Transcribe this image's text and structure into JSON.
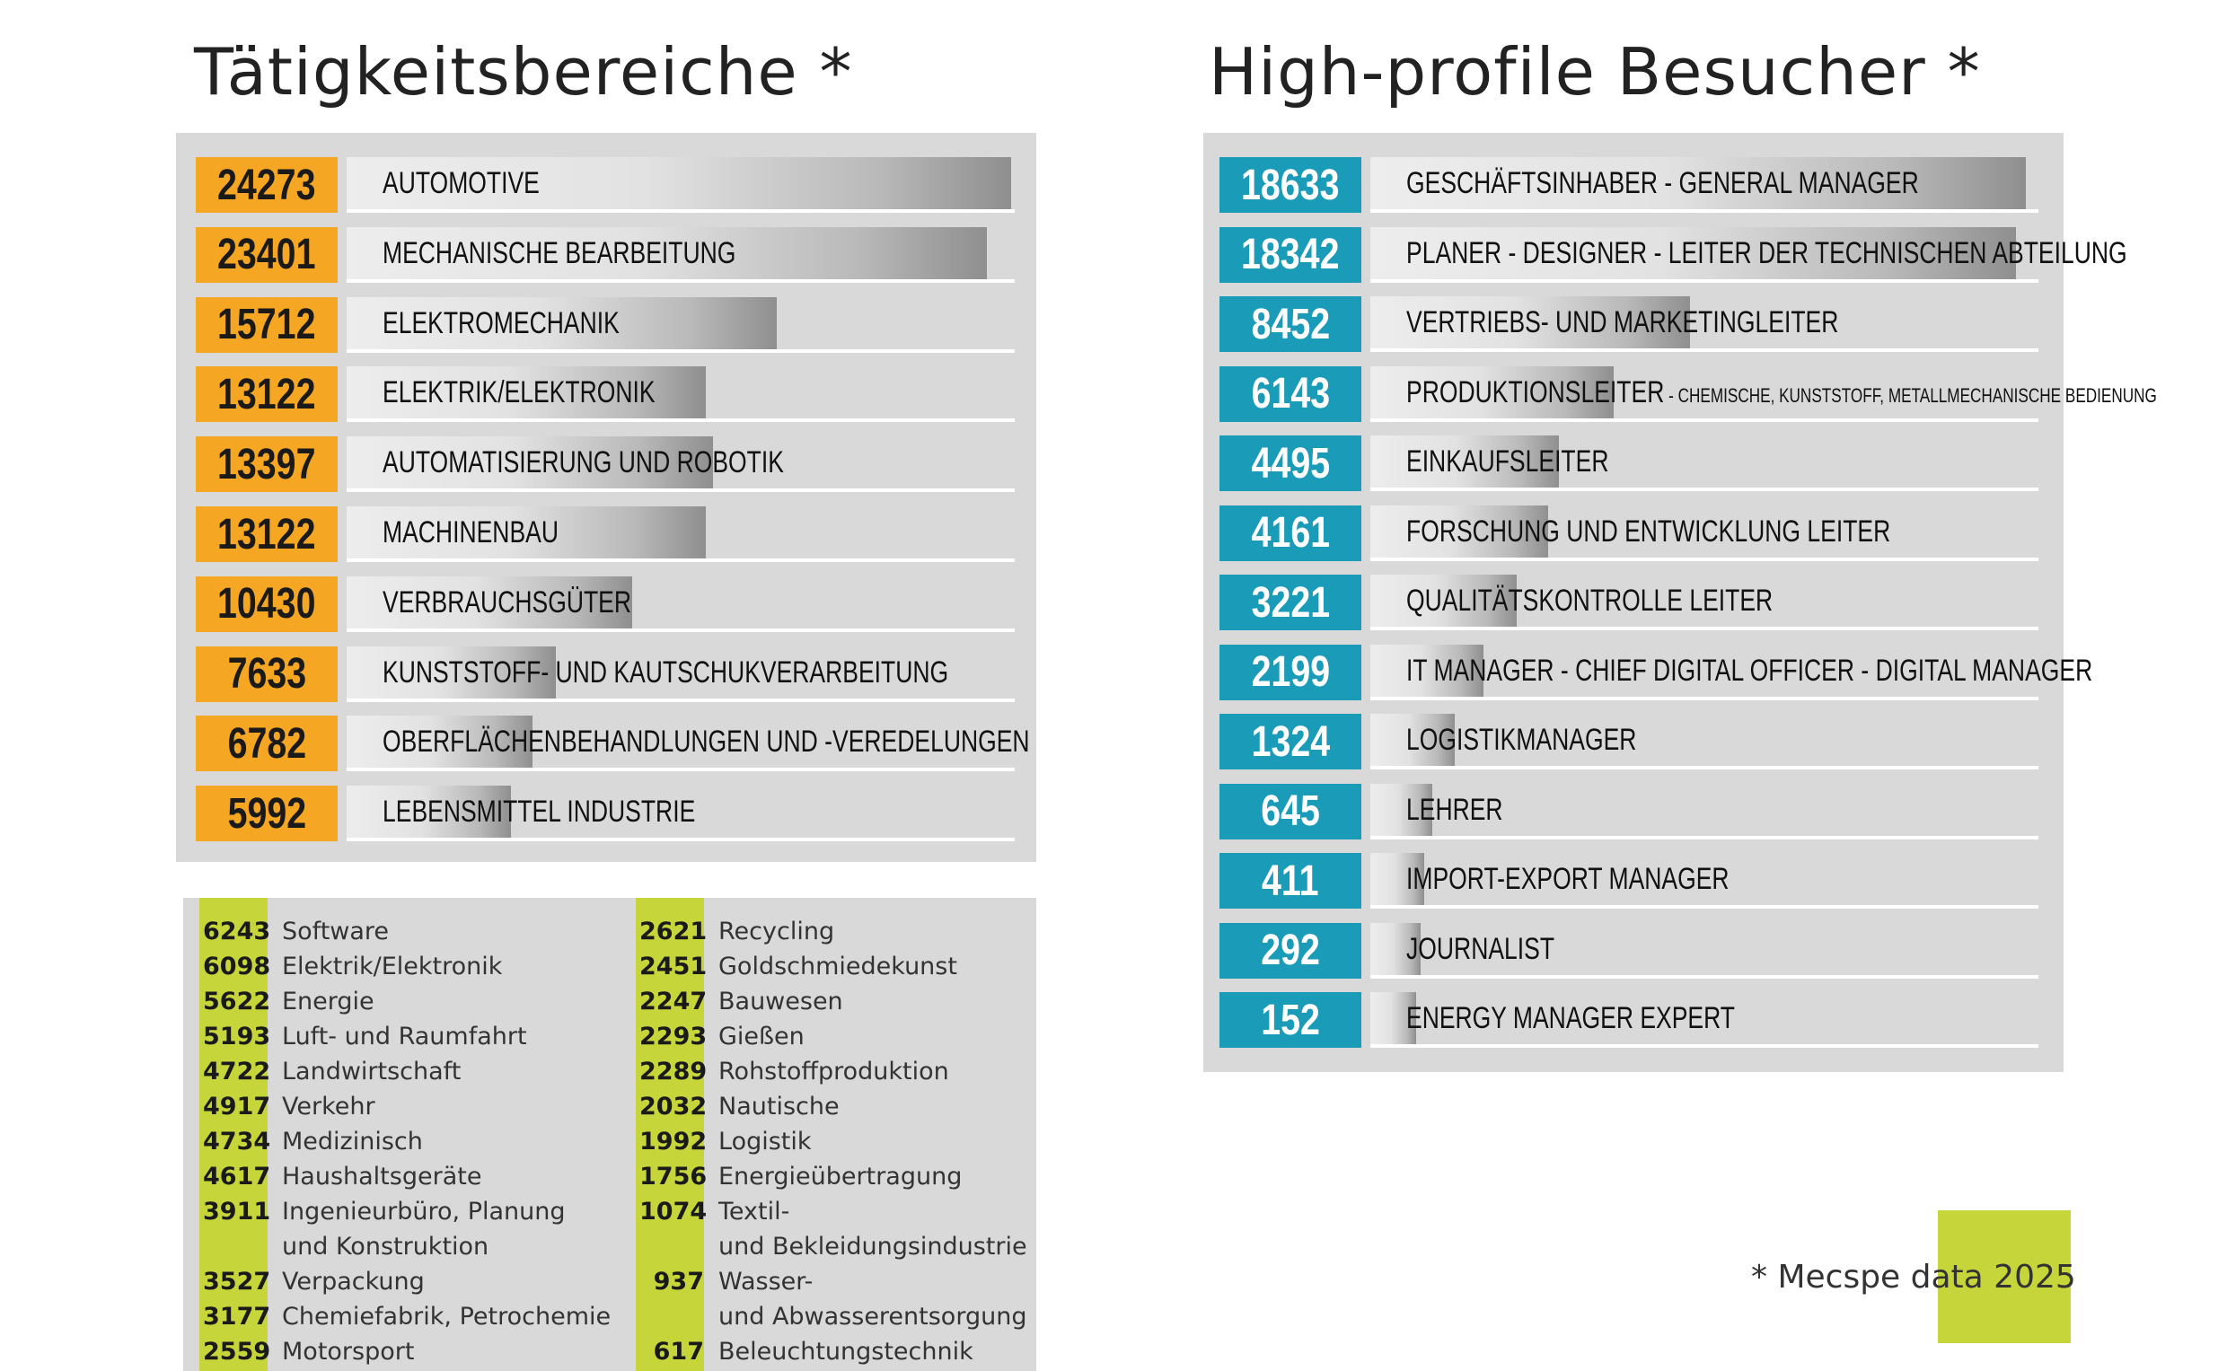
{
  "titles": {
    "left": "Tätigkeitsbereiche *",
    "right": "High-profile Besucher *"
  },
  "colors": {
    "orange": "#f5a623",
    "blue": "#1a9bb8",
    "green": "#c6d63a",
    "panel": "#d9d9d9"
  },
  "footer": {
    "note": "* Mecspe data 2025"
  },
  "chart_data": [
    {
      "type": "bar",
      "title": "Tätigkeitsbereiche *",
      "orientation": "horizontal",
      "categories": [
        "AUTOMOTIVE",
        "MECHANISCHE BEARBEITUNG",
        "ELEKTROMECHANIK",
        "ELEKTRIK/ELEKTRONIK",
        "AUTOMATISIERUNG UND ROBOTIK",
        "MACHINENBAU",
        "VERBRAUCHSGÜTER",
        "KUNSTSTOFF- UND KAUTSCHUKVERARBEITUNG",
        "OBERFLÄCHENBEHANDLUNGEN UND -VEREDELUNGEN",
        "LEBENSMITTEL INDUSTRIE"
      ],
      "values": [
        24273,
        23401,
        15712,
        13122,
        13397,
        13122,
        10430,
        7633,
        6782,
        5992
      ],
      "value_labels": [
        "24273",
        "23401",
        "15712",
        "13122",
        "13397",
        "13122",
        "10430",
        "7633",
        "6782",
        "5992"
      ]
    },
    {
      "type": "bar",
      "title": "High-profile Besucher *",
      "orientation": "horizontal",
      "categories": [
        "GESCHÄFTSINHABER - GENERAL MANAGER",
        "PLANER - DESIGNER - LEITER DER TECHNISCHEN ABTEILUNG",
        "VERTRIEBS- UND MARKETINGLEITER",
        "PRODUKTIONSLEITER",
        "EINKAUFSLEITER",
        "FORSCHUNG UND ENTWICKLUNG LEITER",
        "QUALITÄTSKONTROLLE LEITER",
        "IT MANAGER - CHIEF DIGITAL OFFICER - DIGITAL MANAGER",
        "LOGISTIKMANAGER",
        "LEHRER",
        "IMPORT-EXPORT MANAGER",
        "JOURNALIST",
        "ENERGY MANAGER EXPERT"
      ],
      "subtitles": [
        "",
        "",
        "",
        "- CHEMISCHE, KUNSTSTOFF, METALLMECHANISCHE BEDIENUNG",
        "",
        "",
        "",
        "",
        "",
        "",
        "",
        "",
        ""
      ],
      "values": [
        18633,
        18342,
        8452,
        6143,
        4495,
        4161,
        3221,
        2199,
        1324,
        645,
        411,
        292,
        152
      ],
      "value_labels": [
        "18633",
        "18342",
        "8452",
        "6143",
        "4495",
        "4161",
        "3221",
        "2199",
        "1324",
        "645",
        "411",
        "292",
        "152"
      ]
    },
    {
      "type": "table",
      "columns": [
        [
          {
            "value": "6243",
            "label": [
              "Software"
            ]
          },
          {
            "value": "6098",
            "label": [
              "Elektrik/Elektronik"
            ]
          },
          {
            "value": "5622",
            "label": [
              "Energie"
            ]
          },
          {
            "value": "5193",
            "label": [
              "Luft- und Raumfahrt"
            ]
          },
          {
            "value": "4722",
            "label": [
              "Landwirtschaft"
            ]
          },
          {
            "value": "4917",
            "label": [
              "Verkehr"
            ]
          },
          {
            "value": "4734",
            "label": [
              "Medizinisch"
            ]
          },
          {
            "value": "4617",
            "label": [
              "Haushaltsgeräte"
            ]
          },
          {
            "value": "3911",
            "label": [
              "Ingenieurbüro, Planung",
              "und Konstruktion"
            ]
          },
          {
            "value": "3527",
            "label": [
              "Verpackung"
            ]
          },
          {
            "value": "3177",
            "label": [
              "Chemiefabrik, Petrochemie"
            ]
          },
          {
            "value": "2559",
            "label": [
              "Motorsport"
            ]
          }
        ],
        [
          {
            "value": "2621",
            "label": [
              "Recycling"
            ]
          },
          {
            "value": "2451",
            "label": [
              "Goldschmiedekunst"
            ]
          },
          {
            "value": "2247",
            "label": [
              "Bauwesen"
            ]
          },
          {
            "value": "2293",
            "label": [
              "Gießen"
            ]
          },
          {
            "value": "2289",
            "label": [
              "Rohstoffproduktion"
            ]
          },
          {
            "value": "2032",
            "label": [
              "Nautische"
            ]
          },
          {
            "value": "1992",
            "label": [
              "Logistik"
            ]
          },
          {
            "value": "1756",
            "label": [
              "Energieübertragung"
            ]
          },
          {
            "value": "1074",
            "label": [
              "Textil-",
              "und Bekleidungsindustrie"
            ]
          },
          {
            "value": "937",
            "label": [
              "Wasser-",
              "und Abwasserentsorgung"
            ]
          },
          {
            "value": "617",
            "label": [
              "Beleuchtungstechnik"
            ]
          }
        ]
      ]
    }
  ]
}
